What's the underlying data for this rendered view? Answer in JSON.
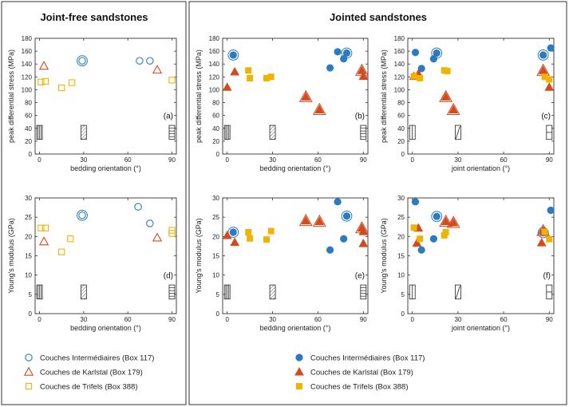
{
  "figure": {
    "left_title": "Joint-free sandstones",
    "right_title": "Jointed sandstones"
  },
  "colors": {
    "blue": "#2a7bbf",
    "red": "#d44a1c",
    "yellow": "#f0b400"
  },
  "legend_open": [
    {
      "label": "Couches Intermédiaires (Box 117)",
      "marker": "circle",
      "color": "#2a7bbf"
    },
    {
      "label": "Couches de Karlstal (Box 179)",
      "marker": "triangle",
      "color": "#d44a1c"
    },
    {
      "label": "Couches de Trifels (Box 388)",
      "marker": "square",
      "color": "#f0b400"
    }
  ],
  "legend_filled": [
    {
      "label": "Couches Intermédiaires (Box 117)",
      "marker": "circle",
      "color": "#2a7bbf"
    },
    {
      "label": "Couches de Karlstal (Box 179)",
      "marker": "triangle",
      "color": "#d44a1c"
    },
    {
      "label": "Couches de Trifels (Box 388)",
      "marker": "square",
      "color": "#f0b400"
    }
  ],
  "chart_data": [
    {
      "type": "scatter",
      "panel": "(a)",
      "xlabel": "bedding orientation (°)",
      "ylabel": "peak differential stress (MPa)",
      "xlim": [
        -3,
        93
      ],
      "ylim": [
        0,
        180
      ],
      "xticks": [
        0,
        30,
        60,
        90
      ],
      "yticks": [
        0,
        20,
        40,
        60,
        80,
        100,
        120,
        140,
        160,
        180
      ],
      "filled": false,
      "icon_kind": "bedding",
      "series": [
        {
          "name": "Couches Intermédiaires (Box 117)",
          "marker": "circle",
          "points": [
            [
              29,
              145,
              1
            ],
            [
              68,
              145,
              0
            ],
            [
              75,
              145,
              0
            ]
          ]
        },
        {
          "name": "Couches de Karlstal (Box 179)",
          "marker": "triangle",
          "points": [
            [
              3,
              137,
              0
            ],
            [
              80,
              131,
              0
            ]
          ]
        },
        {
          "name": "Couches de Trifels (Box 388)",
          "marker": "square",
          "points": [
            [
              1,
              112,
              0
            ],
            [
              4,
              113,
              0
            ],
            [
              15,
              103,
              0
            ],
            [
              22,
              111,
              0
            ],
            [
              90,
              115,
              0
            ]
          ]
        }
      ]
    },
    {
      "type": "scatter",
      "panel": "(b)",
      "xlabel": "bedding orientation (°)",
      "ylabel": "peak differential stress (MPa)",
      "xlim": [
        -3,
        93
      ],
      "ylim": [
        0,
        180
      ],
      "xticks": [
        0,
        30,
        60,
        90
      ],
      "yticks": [
        0,
        20,
        40,
        60,
        80,
        100,
        120,
        140,
        160,
        180
      ],
      "filled": true,
      "icon_kind": "bedding",
      "series": [
        {
          "name": "Couches Intermédiaires (Box 117)",
          "marker": "circle",
          "points": [
            [
              4,
              154,
              1
            ],
            [
              68,
              134,
              0
            ],
            [
              73,
              159,
              0
            ],
            [
              77,
              148,
              0
            ],
            [
              79,
              157,
              1
            ]
          ]
        },
        {
          "name": "Couches de Karlstal (Box 179)",
          "marker": "triangle",
          "points": [
            [
              0,
              104,
              0
            ],
            [
              5,
              128,
              0
            ],
            [
              52,
              89,
              1
            ],
            [
              61,
              69,
              1
            ],
            [
              89,
              130,
              1
            ],
            [
              90,
              121,
              0
            ]
          ]
        },
        {
          "name": "Couches de Trifels (Box 388)",
          "marker": "square",
          "points": [
            [
              14,
              130,
              0
            ],
            [
              15,
              118,
              0
            ],
            [
              26,
              118,
              0
            ],
            [
              29,
              120,
              0
            ]
          ]
        }
      ]
    },
    {
      "type": "scatter",
      "panel": "(c)",
      "xlabel": "joint orientation (°)",
      "ylabel": "peak differential stress (MPa)",
      "xlim": [
        -3,
        93
      ],
      "ylim": [
        0,
        180
      ],
      "xticks": [
        0,
        30,
        60,
        90
      ],
      "yticks": [
        0,
        20,
        40,
        60,
        80,
        100,
        120,
        140,
        160,
        180
      ],
      "filled": true,
      "icon_kind": "joint",
      "series": [
        {
          "name": "Couches Intermédiaires (Box 117)",
          "marker": "circle",
          "points": [
            [
              2,
              158,
              0
            ],
            [
              6,
              133,
              0
            ],
            [
              14,
              148,
              0
            ],
            [
              16,
              157,
              1
            ],
            [
              86,
              154,
              1
            ],
            [
              91,
              165,
              0
            ]
          ]
        },
        {
          "name": "Couches de Karlstal (Box 179)",
          "marker": "triangle",
          "points": [
            [
              1,
              121,
              0
            ],
            [
              4,
              125,
              0
            ],
            [
              22,
              89,
              1
            ],
            [
              27,
              69,
              1
            ],
            [
              86,
              130,
              1
            ],
            [
              90,
              104,
              0
            ]
          ]
        },
        {
          "name": "Couches de Trifels (Box 388)",
          "marker": "square",
          "points": [
            [
              1,
              121,
              0
            ],
            [
              5,
              118,
              0
            ],
            [
              21,
              130,
              0
            ],
            [
              23,
              129,
              0
            ],
            [
              87,
              120,
              0
            ],
            [
              90,
              116,
              0
            ]
          ]
        }
      ]
    },
    {
      "type": "scatter",
      "panel": "(d)",
      "xlabel": "bedding orientation (°)",
      "ylabel": "Young's modulus (GPa)",
      "xlim": [
        -3,
        93
      ],
      "ylim": [
        0,
        30
      ],
      "xticks": [
        0,
        30,
        60,
        90
      ],
      "yticks": [
        0,
        5,
        10,
        15,
        20,
        25,
        30
      ],
      "filled": false,
      "icon_kind": "bedding",
      "series": [
        {
          "name": "Couches Intermédiaires (Box 117)",
          "marker": "circle",
          "points": [
            [
              29,
              25.5,
              1
            ],
            [
              67,
              27.7,
              0
            ],
            [
              75,
              23.4,
              0
            ]
          ]
        },
        {
          "name": "Couches de Karlstal (Box 179)",
          "marker": "triangle",
          "points": [
            [
              3,
              18.7,
              0
            ],
            [
              80,
              19.7,
              0
            ]
          ]
        },
        {
          "name": "Couches de Trifels (Box 388)",
          "marker": "square",
          "points": [
            [
              1,
              22.2,
              0
            ],
            [
              4,
              22.2,
              0
            ],
            [
              15,
              16.0,
              0
            ],
            [
              21,
              19.4,
              0
            ],
            [
              90,
              20.8,
              0
            ],
            [
              90,
              21.6,
              0
            ]
          ]
        }
      ]
    },
    {
      "type": "scatter",
      "panel": "(e)",
      "xlabel": "bedding orientation (°)",
      "ylabel": "Young's modulus (GPa)",
      "xlim": [
        -3,
        93
      ],
      "ylim": [
        0,
        30
      ],
      "xticks": [
        0,
        30,
        60,
        90
      ],
      "yticks": [
        0,
        5,
        10,
        15,
        20,
        25,
        30
      ],
      "filled": true,
      "icon_kind": "bedding",
      "series": [
        {
          "name": "Couches Intermédiaires (Box 117)",
          "marker": "circle",
          "points": [
            [
              4,
              21.1,
              1
            ],
            [
              68,
              16.5,
              0
            ],
            [
              73,
              29.0,
              0
            ],
            [
              77,
              19.4,
              0
            ],
            [
              79,
              25.3,
              1
            ]
          ]
        },
        {
          "name": "Couches de Karlstal (Box 179)",
          "marker": "triangle",
          "points": [
            [
              0,
              20.3,
              0
            ],
            [
              5,
              18.5,
              0
            ],
            [
              52,
              24.1,
              1
            ],
            [
              61,
              23.9,
              1
            ],
            [
              89,
              22.2,
              1
            ],
            [
              90,
              21.3,
              0
            ],
            [
              90,
              18.2,
              0
            ]
          ]
        },
        {
          "name": "Couches de Trifels (Box 388)",
          "marker": "square",
          "points": [
            [
              14,
              21.1,
              0
            ],
            [
              15,
              19.5,
              0
            ],
            [
              26,
              19.2,
              0
            ],
            [
              29,
              21.4,
              0
            ]
          ]
        }
      ]
    },
    {
      "type": "scatter",
      "panel": "(f)",
      "xlabel": "joint orientation (°)",
      "ylabel": "Young's modulus (GPa)",
      "xlim": [
        -3,
        93
      ],
      "ylim": [
        0,
        30
      ],
      "xticks": [
        0,
        30,
        60,
        90
      ],
      "yticks": [
        0,
        5,
        10,
        15,
        20,
        25,
        30
      ],
      "filled": true,
      "icon_kind": "joint",
      "series": [
        {
          "name": "Couches Intermédiaires (Box 117)",
          "marker": "circle",
          "points": [
            [
              2,
              29.0,
              0
            ],
            [
              6,
              16.5,
              0
            ],
            [
              14,
              19.4,
              0
            ],
            [
              16,
              25.2,
              1
            ],
            [
              86,
              21.0,
              1
            ],
            [
              91,
              26.8,
              0
            ]
          ]
        },
        {
          "name": "Couches de Karlstal (Box 179)",
          "marker": "triangle",
          "points": [
            [
              3,
              18.3,
              0
            ],
            [
              4,
              22.2,
              0
            ],
            [
              22,
              23.9,
              1
            ],
            [
              27,
              23.6,
              1
            ],
            [
              86,
              21.5,
              1
            ],
            [
              85,
              18.4,
              0
            ]
          ]
        },
        {
          "name": "Couches de Trifels (Box 388)",
          "marker": "square",
          "points": [
            [
              1,
              22.3,
              0
            ],
            [
              5,
              19.4,
              0
            ],
            [
              21,
              20.3,
              0
            ],
            [
              22,
              21.1,
              0
            ],
            [
              87,
              21.2,
              0
            ],
            [
              90,
              19.3,
              0
            ]
          ]
        }
      ]
    }
  ]
}
